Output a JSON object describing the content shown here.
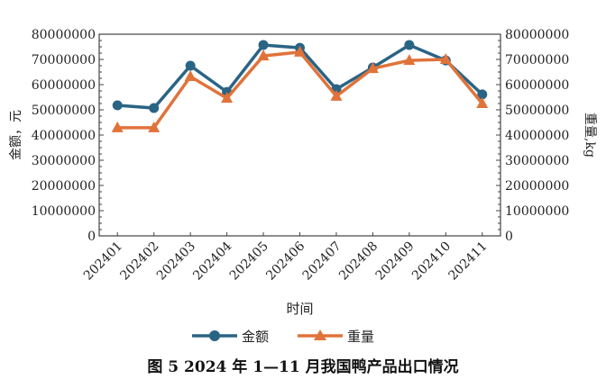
{
  "chart_data": {
    "type": "line",
    "categories": [
      "202401",
      "202402",
      "202403",
      "202404",
      "202405",
      "202406",
      "202407",
      "202408",
      "202409",
      "202410",
      "202411"
    ],
    "series": [
      {
        "name": "金额",
        "axis": "left",
        "color": "#2a6485",
        "marker": "circle",
        "values": [
          51800000,
          50700000,
          67500000,
          57100000,
          75700000,
          74600000,
          58200000,
          66800000,
          75700000,
          69600000,
          56100000
        ]
      },
      {
        "name": "重量",
        "axis": "right",
        "color": "#e0733a",
        "marker": "triangle",
        "values": [
          42900000,
          42900000,
          63200000,
          54600000,
          71400000,
          72900000,
          55400000,
          66400000,
          69600000,
          70000000,
          52500000
        ]
      }
    ],
    "xlabel": "时间",
    "ylabel": "金额，元",
    "y2label": "重量,kg",
    "ylim": [
      0,
      80000000
    ],
    "y2lim": [
      0,
      80000000
    ],
    "yticks": [
      "0",
      "10000000",
      "20000000",
      "30000000",
      "40000000",
      "50000000",
      "60000000",
      "70000000",
      "80000000"
    ],
    "grid": false,
    "legend": "bottom",
    "caption": "图 5 2024 年 1—11 月我国鸭产品出口情况"
  }
}
